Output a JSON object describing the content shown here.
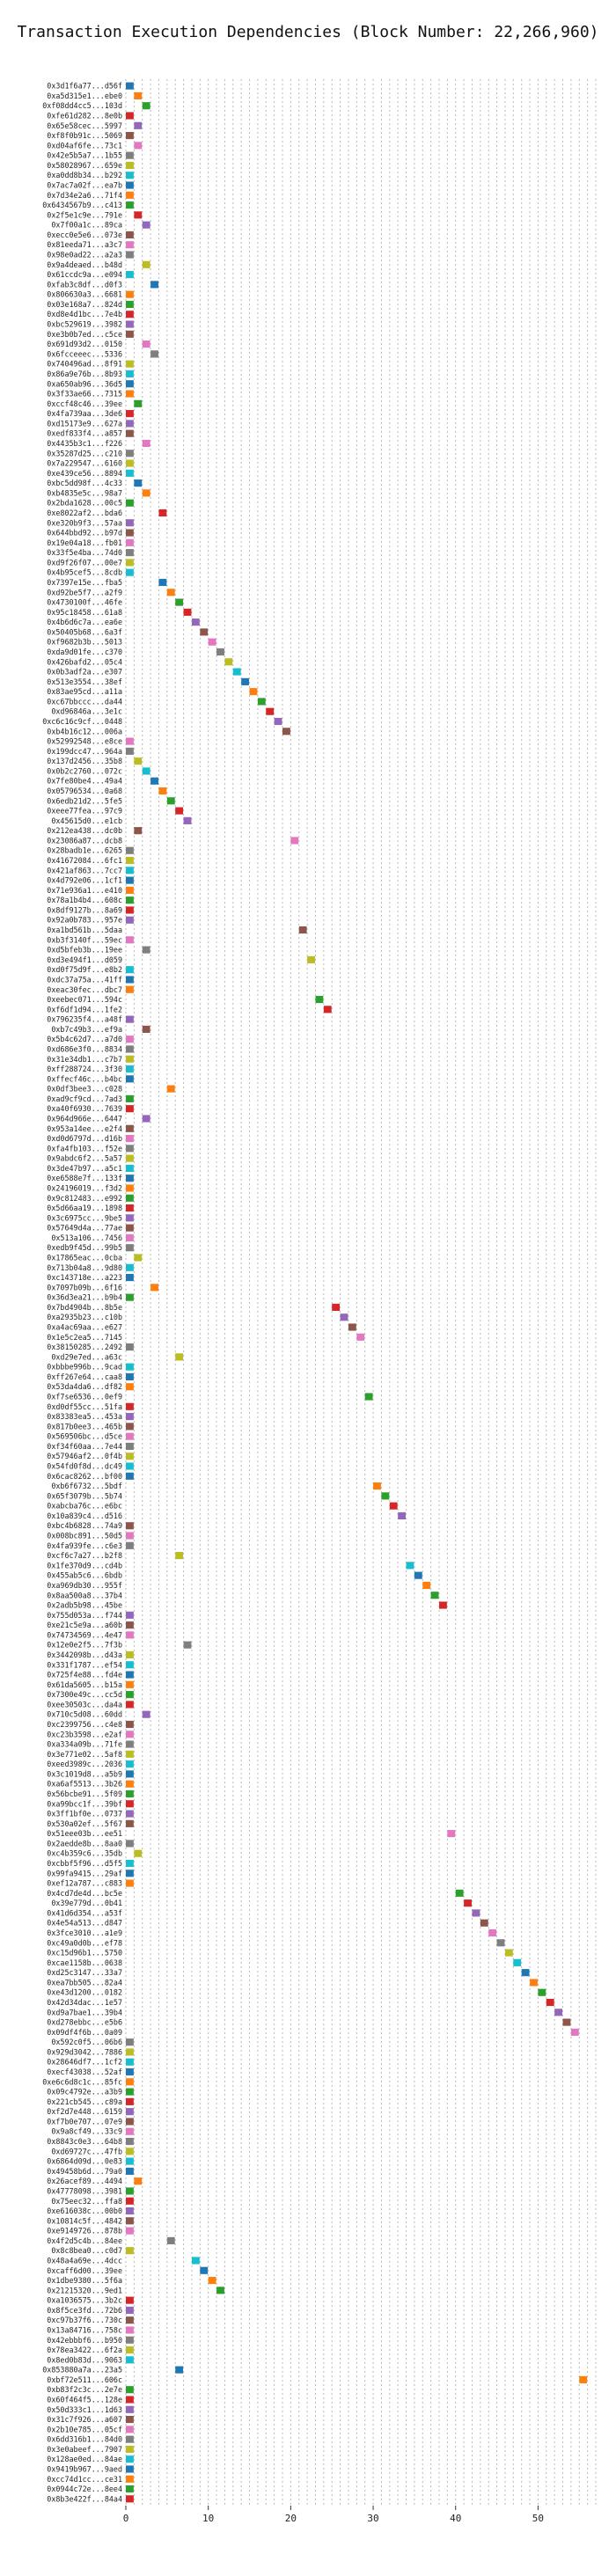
{
  "chart_data": {
    "type": "gantt",
    "title": "Transaction Execution Dependencies (Block Number: 22,266,960)",
    "xlim": [
      0,
      57
    ],
    "xticks": [
      0,
      10,
      20,
      30,
      40,
      50
    ],
    "grid": "vertical dashed",
    "colors": [
      "#1f77b4",
      "#ff7f0e",
      "#2ca02c",
      "#d62728",
      "#9467bd",
      "#8c564b",
      "#e377c2",
      "#7f7f7f",
      "#bcbd22",
      "#17becf"
    ],
    "rows": [
      {
        "tx": "0x3d1f6a77...d56f",
        "start": 0
      },
      {
        "tx": "0xa5d315e1...ebe0",
        "start": 1
      },
      {
        "tx": "0xf08dd4cc5...103d",
        "start": 2
      },
      {
        "tx": "0xfe61d282...8e0b",
        "start": 0
      },
      {
        "tx": "0x65e58cec...5997",
        "start": 1
      },
      {
        "tx": "0xf8f0b91c...5069",
        "start": 0
      },
      {
        "tx": "0xd04af6fe...73c1",
        "start": 1
      },
      {
        "tx": "0x42e5b5a7...1b55",
        "start": 0
      },
      {
        "tx": "0x58028967...659e",
        "start": 0
      },
      {
        "tx": "0xa0dd8b34...b292",
        "start": 0
      },
      {
        "tx": "0x7ac7a02f...ea7b",
        "start": 0
      },
      {
        "tx": "0x7d34e2a6...71f4",
        "start": 0
      },
      {
        "tx": "0x6434567b9...c413",
        "start": 0
      },
      {
        "tx": "0x2f5e1c9e...791e",
        "start": 1
      },
      {
        "tx": "0x7f00a1c...89ca",
        "start": 2
      },
      {
        "tx": "0xecc0e5e6...073e",
        "start": 0
      },
      {
        "tx": "0x81eeda71...a3c7",
        "start": 0
      },
      {
        "tx": "0x98e0ad22...a2a3",
        "start": 0
      },
      {
        "tx": "0x9a4deaed...b48d",
        "start": 2
      },
      {
        "tx": "0x61ccdc9a...e094",
        "start": 0
      },
      {
        "tx": "0xfab3c8df...d0f3",
        "start": 3
      },
      {
        "tx": "0x806630a3...6681",
        "start": 0
      },
      {
        "tx": "0x03e168a7...824d",
        "start": 0
      },
      {
        "tx": "0xd8e4d1bc...7e4b",
        "start": 0
      },
      {
        "tx": "0xbc529619...3982",
        "start": 0
      },
      {
        "tx": "0xe3b0b7ed...c5ce",
        "start": 0
      },
      {
        "tx": "0x691d93d2...0150",
        "start": 2
      },
      {
        "tx": "0x6fcceeec...5336",
        "start": 3
      },
      {
        "tx": "0x740496ad...8f91",
        "start": 0
      },
      {
        "tx": "0x86a9e76b...8b93",
        "start": 0
      },
      {
        "tx": "0xa650ab96...36d5",
        "start": 0
      },
      {
        "tx": "0x3f33ae66...7315",
        "start": 0
      },
      {
        "tx": "0xccf48c46...39ee",
        "start": 1
      },
      {
        "tx": "0x4fa739aa...3de6",
        "start": 0
      },
      {
        "tx": "0xd15173e9...627a",
        "start": 0
      },
      {
        "tx": "0xedf833f4...a857",
        "start": 0
      },
      {
        "tx": "0x4435b3c1...f226",
        "start": 2
      },
      {
        "tx": "0x35287d25...c210",
        "start": 0
      },
      {
        "tx": "0x7a229547...6160",
        "start": 0
      },
      {
        "tx": "0xe439ce56...8894",
        "start": 0
      },
      {
        "tx": "0xbc5dd98f...4c33",
        "start": 1
      },
      {
        "tx": "0xb4835e5c...98a7",
        "start": 2
      },
      {
        "tx": "0x2bda1628...00c5",
        "start": 0
      },
      {
        "tx": "0xe8022af2...bda6",
        "start": 4
      },
      {
        "tx": "0xe320b9f3...57aa",
        "start": 0
      },
      {
        "tx": "0x644bbd92...b97d",
        "start": 0
      },
      {
        "tx": "0x19e04a18...fb01",
        "start": 0
      },
      {
        "tx": "0x33f5e4ba...74d0",
        "start": 0
      },
      {
        "tx": "0xd9f26f07...00e7",
        "start": 0
      },
      {
        "tx": "0x4b95cef5...8cdb",
        "start": 0
      },
      {
        "tx": "0x7397e15e...fba5",
        "start": 4
      },
      {
        "tx": "0xd92be5f7...a2f9",
        "start": 5
      },
      {
        "tx": "0x4730100f...46fe",
        "start": 6
      },
      {
        "tx": "0x95c18458...61a8",
        "start": 7
      },
      {
        "tx": "0x4b6d6c7a...ea6e",
        "start": 8
      },
      {
        "tx": "0x50405b68...6a3f",
        "start": 9
      },
      {
        "tx": "0xf9682b3b...5013",
        "start": 10
      },
      {
        "tx": "0xda9d01fe...c370",
        "start": 11
      },
      {
        "tx": "0x426bafd2...05c4",
        "start": 12
      },
      {
        "tx": "0x0b3adf2a...e307",
        "start": 13
      },
      {
        "tx": "0x513e3554...38ef",
        "start": 14
      },
      {
        "tx": "0x83ae95cd...a11a",
        "start": 15
      },
      {
        "tx": "0xc67bbccc...da44",
        "start": 16
      },
      {
        "tx": "0xd96846a...3e1c",
        "start": 17
      },
      {
        "tx": "0xc6c16c9cf...0448",
        "start": 18
      },
      {
        "tx": "0xb4b16c12...006a",
        "start": 19
      },
      {
        "tx": "0x52992548...e8ce",
        "start": 0
      },
      {
        "tx": "0x199dcc47...964a",
        "start": 0
      },
      {
        "tx": "0x137d2456...35b8",
        "start": 1
      },
      {
        "tx": "0x0b2c2760...072c",
        "start": 2
      },
      {
        "tx": "0x7fe80be4...49a4",
        "start": 3
      },
      {
        "tx": "0x05796534...0a68",
        "start": 4
      },
      {
        "tx": "0x6edb21d2...5fe5",
        "start": 5
      },
      {
        "tx": "0xeee77fea...97c9",
        "start": 6
      },
      {
        "tx": "0x45615d0...e1cb",
        "start": 7
      },
      {
        "tx": "0x212ea438...dc0b",
        "start": 1
      },
      {
        "tx": "0x23086a87...dcb8",
        "start": 20
      },
      {
        "tx": "0x28badb1e...6265",
        "start": 0
      },
      {
        "tx": "0x41672084...6fc1",
        "start": 0
      },
      {
        "tx": "0x421af863...7cc7",
        "start": 0
      },
      {
        "tx": "0x4d792e06...1cf1",
        "start": 0
      },
      {
        "tx": "0x71e936a1...e410",
        "start": 0
      },
      {
        "tx": "0x78a1b4b4...608c",
        "start": 0
      },
      {
        "tx": "0x8df9127b...8a69",
        "start": 0
      },
      {
        "tx": "0x92a0b783...957e",
        "start": 0
      },
      {
        "tx": "0xa1bd561b...5daa",
        "start": 21
      },
      {
        "tx": "0xb3f3140f...59ec",
        "start": 0
      },
      {
        "tx": "0xd5bfeb3b...19ee",
        "start": 2
      },
      {
        "tx": "0xd3e494f1...d059",
        "start": 22
      },
      {
        "tx": "0xd0f75d9f...e8b2",
        "start": 0
      },
      {
        "tx": "0xdc37a75a...41ff",
        "start": 0
      },
      {
        "tx": "0xeac30fec...dbc7",
        "start": 0
      },
      {
        "tx": "0xeebec071...594c",
        "start": 23
      },
      {
        "tx": "0xf6df1d94...1fe2",
        "start": 24
      },
      {
        "tx": "0x796235f4...a48f",
        "start": 0
      },
      {
        "tx": "0xb7c49b3...ef9a",
        "start": 2
      },
      {
        "tx": "0x5b4c62d7...a7d0",
        "start": 0
      },
      {
        "tx": "0xd686e3f0...8834",
        "start": 0
      },
      {
        "tx": "0x31e34db1...c7b7",
        "start": 0
      },
      {
        "tx": "0xff288724...3f30",
        "start": 0
      },
      {
        "tx": "0xffecf46c...b4bc",
        "start": 0
      },
      {
        "tx": "0x0df3bee3...c028",
        "start": 5
      },
      {
        "tx": "0xad9cf9cd...7ad3",
        "start": 0
      },
      {
        "tx": "0xa40f6930...7639",
        "start": 0
      },
      {
        "tx": "0x964d966e...6447",
        "start": 2
      },
      {
        "tx": "0x953a14ee...e2f4",
        "start": 0
      },
      {
        "tx": "0xd0d6797d...d16b",
        "start": 0
      },
      {
        "tx": "0xfa4fb103...f52e",
        "start": 0
      },
      {
        "tx": "0x9abdc6f2...5a57",
        "start": 0
      },
      {
        "tx": "0x3de47b97...a5c1",
        "start": 0
      },
      {
        "tx": "0xe6588e7f...133f",
        "start": 0
      },
      {
        "tx": "0x24196019...f3d2",
        "start": 0
      },
      {
        "tx": "0x9c812483...e992",
        "start": 0
      },
      {
        "tx": "0x5d66aa19...1898",
        "start": 0
      },
      {
        "tx": "0x3c6975cc...9be5",
        "start": 0
      },
      {
        "tx": "0x57649d4a...77ae",
        "start": 0
      },
      {
        "tx": "0x513a106...7456",
        "start": 0
      },
      {
        "tx": "0xedb9f45d...99b5",
        "start": 0
      },
      {
        "tx": "0x17865eac...0cba",
        "start": 1
      },
      {
        "tx": "0x713b04a8...9d80",
        "start": 0
      },
      {
        "tx": "0xc143718e...a223",
        "start": 0
      },
      {
        "tx": "0x7097b09b...6f16",
        "start": 3
      },
      {
        "tx": "0x36d3ea21...b9b4",
        "start": 0
      },
      {
        "tx": "0x7bd4904b...8b5e",
        "start": 25
      },
      {
        "tx": "0xa2935b23...c10b",
        "start": 26
      },
      {
        "tx": "0xa4ac69aa...e627",
        "start": 27
      },
      {
        "tx": "0x1e5c2ea5...7145",
        "start": 28
      },
      {
        "tx": "0x38150285...2492",
        "start": 0
      },
      {
        "tx": "0xd29e7ed...a63c",
        "start": 6
      },
      {
        "tx": "0xbbbe996b...9cad",
        "start": 0
      },
      {
        "tx": "0xff267e64...caa8",
        "start": 0
      },
      {
        "tx": "0x53da4da6...df82",
        "start": 0
      },
      {
        "tx": "0xf7se6536...0ef9",
        "start": 29
      },
      {
        "tx": "0xd0df55cc...51fa",
        "start": 0
      },
      {
        "tx": "0x83383ea5...453a",
        "start": 0
      },
      {
        "tx": "0x817b0ee3...465b",
        "start": 0
      },
      {
        "tx": "0x569506bc...d5ce",
        "start": 0
      },
      {
        "tx": "0xf34f60aa...7e44",
        "start": 0
      },
      {
        "tx": "0x57946af2...0f4b",
        "start": 0
      },
      {
        "tx": "0x54fd0f8d...dc49",
        "start": 0
      },
      {
        "tx": "0x6cac8262...bf00",
        "start": 0
      },
      {
        "tx": "0xb6f6732...5bdf",
        "start": 30
      },
      {
        "tx": "0x65f3079b...5b74",
        "start": 31
      },
      {
        "tx": "0xabcba76c...e6bc",
        "start": 32
      },
      {
        "tx": "0x10a839c4...d516",
        "start": 33
      },
      {
        "tx": "0xbc4b6828...74a9",
        "start": 0
      },
      {
        "tx": "0x008bc891...50d5",
        "start": 0
      },
      {
        "tx": "0x4fa939fe...c6e3",
        "start": 0
      },
      {
        "tx": "0xcf6c7a27...b2f8",
        "start": 6
      },
      {
        "tx": "0x1fe370d9...cd4b",
        "start": 34
      },
      {
        "tx": "0x455ab5c6...6bdb",
        "start": 35
      },
      {
        "tx": "0xa969db30...955f",
        "start": 36
      },
      {
        "tx": "0x8aa500a8...37b4",
        "start": 37
      },
      {
        "tx": "0x2adb5b98...45be",
        "start": 38
      },
      {
        "tx": "0x755d053a...f744",
        "start": 0
      },
      {
        "tx": "0xe21c5e9a...a60b",
        "start": 0
      },
      {
        "tx": "0x74734569...4e47",
        "start": 0
      },
      {
        "tx": "0x12e0e2f5...7f3b",
        "start": 7
      },
      {
        "tx": "0x3442098b...d43a",
        "start": 0
      },
      {
        "tx": "0x331f1787...ef54",
        "start": 0
      },
      {
        "tx": "0x725f4e88...fd4e",
        "start": 0
      },
      {
        "tx": "0x61da5605...b15a",
        "start": 0
      },
      {
        "tx": "0x7300e49c...cc5d",
        "start": 0
      },
      {
        "tx": "0xee30503c...da4a",
        "start": 0
      },
      {
        "tx": "0x710c5d08...60dd",
        "start": 2
      },
      {
        "tx": "0xc2399756...c4e8",
        "start": 0
      },
      {
        "tx": "0xc23b3598...e2af",
        "start": 0
      },
      {
        "tx": "0xa334a09b...71fe",
        "start": 0
      },
      {
        "tx": "0x3e771e02...5af8",
        "start": 0
      },
      {
        "tx": "0xeed3989c...2036",
        "start": 0
      },
      {
        "tx": "0x3c1019d8...a5b9",
        "start": 0
      },
      {
        "tx": "0xa6af5513...3b26",
        "start": 0
      },
      {
        "tx": "0x56bcbe91...5f09",
        "start": 0
      },
      {
        "tx": "0xa99bcc1f...39bf",
        "start": 0
      },
      {
        "tx": "0x3ff1bf0e...0737",
        "start": 0
      },
      {
        "tx": "0x530a02ef...5f67",
        "start": 0
      },
      {
        "tx": "0x51eee03b...ee51",
        "start": 39
      },
      {
        "tx": "0x2aedde8b...8aa0",
        "start": 0
      },
      {
        "tx": "0xc4b359c6...35db",
        "start": 1
      },
      {
        "tx": "0xcbbf5f96...d5f5",
        "start": 0
      },
      {
        "tx": "0x99fa9415...29af",
        "start": 0
      },
      {
        "tx": "0xef12a787...c883",
        "start": 0
      },
      {
        "tx": "0x4cd7de4d...bc5e",
        "start": 40
      },
      {
        "tx": "0x39e779d...0b41",
        "start": 41
      },
      {
        "tx": "0x41d6d354...a53f",
        "start": 42
      },
      {
        "tx": "0x4e54a513...d847",
        "start": 43
      },
      {
        "tx": "0x3fce3010...a1e9",
        "start": 44
      },
      {
        "tx": "0xc49a0d0b...ef78",
        "start": 45
      },
      {
        "tx": "0xc15d96b1...5750",
        "start": 46
      },
      {
        "tx": "0xcae1158b...0638",
        "start": 47
      },
      {
        "tx": "0xd25c3147...33a7",
        "start": 48
      },
      {
        "tx": "0xea7bb505...82a4",
        "start": 49
      },
      {
        "tx": "0xe43d1200...0182",
        "start": 50
      },
      {
        "tx": "0x42d34dac...1e57",
        "start": 51
      },
      {
        "tx": "0xd9a7bae1...39b4",
        "start": 52
      },
      {
        "tx": "0xd278ebbc...e5b6",
        "start": 53
      },
      {
        "tx": "0x09df4f6b...0a09",
        "start": 54
      },
      {
        "tx": "0x592c0f5...06b6",
        "start": 0
      },
      {
        "tx": "0x929d3042...7886",
        "start": 0
      },
      {
        "tx": "0x28646df7...1cf2",
        "start": 0
      },
      {
        "tx": "0xecf43038...52af",
        "start": 0
      },
      {
        "tx": "0xe6c6d8c1c...85fc",
        "start": 0
      },
      {
        "tx": "0x09c4792e...a3b9",
        "start": 0
      },
      {
        "tx": "0x221cb545...c89a",
        "start": 0
      },
      {
        "tx": "0xf2d7e448...6159",
        "start": 0
      },
      {
        "tx": "0xf7b0e707...07e9",
        "start": 0
      },
      {
        "tx": "0x9a8cf49...33c9",
        "start": 0
      },
      {
        "tx": "0x8843c0e3...64b8",
        "start": 0
      },
      {
        "tx": "0xd69727c...47fb",
        "start": 0
      },
      {
        "tx": "0x6864d09d...0e83",
        "start": 0
      },
      {
        "tx": "0x49458b6d...79a0",
        "start": 0
      },
      {
        "tx": "0x26acef89...4494",
        "start": 1
      },
      {
        "tx": "0x47778098...3981",
        "start": 0
      },
      {
        "tx": "0x75eec32...ffa8",
        "start": 0
      },
      {
        "tx": "0xe616038c...00b0",
        "start": 0
      },
      {
        "tx": "0x10814c5f...4842",
        "start": 0
      },
      {
        "tx": "0xe9149726...878b",
        "start": 0
      },
      {
        "tx": "0x4f2d5c4b...84ee",
        "start": 5
      },
      {
        "tx": "0x8c8bea0...c0d7",
        "start": 0
      },
      {
        "tx": "0x48a4a69e...4dcc",
        "start": 8
      },
      {
        "tx": "0xcaff6d00...39ee",
        "start": 9
      },
      {
        "tx": "0x1dbe9380...5f6a",
        "start": 10
      },
      {
        "tx": "0x21215320...9ed1",
        "start": 11
      },
      {
        "tx": "0xa1036575...3b2c",
        "start": 0
      },
      {
        "tx": "0x8f5ce3fd...72b6",
        "start": 0
      },
      {
        "tx": "0xc97b37f6...730c",
        "start": 0
      },
      {
        "tx": "0x13a84716...758c",
        "start": 0
      },
      {
        "tx": "0x42ebbbf6...b950",
        "start": 0
      },
      {
        "tx": "0x78ea3422...6f2a",
        "start": 0
      },
      {
        "tx": "0x8ed0b83d...9063",
        "start": 0
      },
      {
        "tx": "0x853880a7a...23a5",
        "start": 6
      },
      {
        "tx": "0xbf72e511...606c",
        "start": 55
      },
      {
        "tx": "0xb83f2c3c...2e7e",
        "start": 0
      },
      {
        "tx": "0x60f464f5...128e",
        "start": 0
      },
      {
        "tx": "0x50d333c1...1d63",
        "start": 0
      },
      {
        "tx": "0x31c7f926...a607",
        "start": 0
      },
      {
        "tx": "0x2b10e785...05cf",
        "start": 0
      },
      {
        "tx": "0x6dd316b1...84d0",
        "start": 0
      },
      {
        "tx": "0x3e0abeef...7907",
        "start": 0
      },
      {
        "tx": "0x128ae0ed...84ae",
        "start": 0
      },
      {
        "tx": "0x9419b967...9aed",
        "start": 0
      },
      {
        "tx": "0xcc74d1cc...ce31",
        "start": 0
      },
      {
        "tx": "0x0944c72e...8ee4",
        "start": 0
      },
      {
        "tx": "0x8b3e422f...84a4",
        "start": 0
      }
    ]
  }
}
